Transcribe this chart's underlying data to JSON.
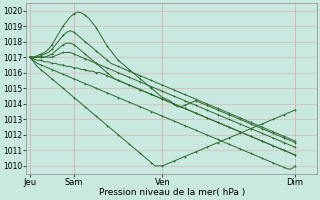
{
  "xlabel": "Pression niveau de la mer( hPa )",
  "bg_color": "#c8e8e0",
  "grid_color": "#d4b8b8",
  "line_color": "#2d6a2d",
  "ylim": [
    1009.5,
    1020.5
  ],
  "yticks": [
    1010,
    1011,
    1012,
    1013,
    1014,
    1015,
    1016,
    1017,
    1018,
    1019,
    1020
  ],
  "xtick_labels": [
    "Jeu",
    "Sam",
    "Ven",
    "Dim"
  ],
  "xtick_pos": [
    0,
    12,
    36,
    72
  ],
  "xlim": [
    -1,
    78
  ],
  "lines": [
    [
      1017.0,
      1017.0,
      1017.1,
      1017.2,
      1017.3,
      1017.5,
      1017.8,
      1018.2,
      1018.6,
      1019.0,
      1019.3,
      1019.6,
      1019.8,
      1019.9,
      1019.85,
      1019.7,
      1019.5,
      1019.2,
      1018.9,
      1018.5,
      1018.1,
      1017.7,
      1017.4,
      1017.1,
      1016.8,
      1016.6,
      1016.4,
      1016.2,
      1016.0,
      1015.8,
      1015.6,
      1015.4,
      1015.2,
      1015.0,
      1014.8,
      1014.6,
      1014.4,
      1014.3,
      1014.2,
      1014.0,
      1013.8,
      1013.8,
      1013.9,
      1014.0,
      1014.1,
      1014.2,
      1014.1,
      1014.0,
      1013.9,
      1013.8,
      1013.7,
      1013.6,
      1013.5,
      1013.4,
      1013.3,
      1013.2,
      1013.1,
      1013.0,
      1012.9,
      1012.8,
      1012.7,
      1012.6,
      1012.5,
      1012.4,
      1012.3,
      1012.2,
      1012.1,
      1012.0,
      1011.9,
      1011.8,
      1011.7,
      1011.6,
      1011.5
    ],
    [
      1017.0,
      1017.0,
      1017.0,
      1017.1,
      1017.2,
      1017.3,
      1017.5,
      1017.8,
      1018.1,
      1018.4,
      1018.6,
      1018.7,
      1018.6,
      1018.4,
      1018.2,
      1018.0,
      1017.8,
      1017.6,
      1017.4,
      1017.2,
      1017.0,
      1016.8,
      1016.6,
      1016.5,
      1016.4,
      1016.3,
      1016.2,
      1016.1,
      1016.0,
      1015.9,
      1015.8,
      1015.7,
      1015.6,
      1015.5,
      1015.4,
      1015.3,
      1015.2,
      1015.1,
      1015.0,
      1014.9,
      1014.8,
      1014.7,
      1014.6,
      1014.5,
      1014.4,
      1014.3,
      1014.2,
      1014.1,
      1014.0,
      1013.9,
      1013.8,
      1013.7,
      1013.6,
      1013.5,
      1013.4,
      1013.3,
      1013.2,
      1013.1,
      1013.0,
      1012.9,
      1012.8,
      1012.7,
      1012.6,
      1012.5,
      1012.4,
      1012.3,
      1012.2,
      1012.1,
      1012.0,
      1011.9,
      1011.8,
      1011.7,
      1011.6
    ],
    [
      1017.0,
      1017.0,
      1017.0,
      1017.0,
      1017.0,
      1017.1,
      1017.2,
      1017.4,
      1017.6,
      1017.8,
      1017.9,
      1017.9,
      1017.8,
      1017.6,
      1017.4,
      1017.2,
      1017.0,
      1016.8,
      1016.6,
      1016.4,
      1016.2,
      1016.0,
      1015.8,
      1015.6,
      1015.5,
      1015.4,
      1015.3,
      1015.2,
      1015.1,
      1015.0,
      1014.9,
      1014.8,
      1014.7,
      1014.6,
      1014.5,
      1014.4,
      1014.3,
      1014.2,
      1014.1,
      1014.0,
      1013.9,
      1013.8,
      1013.7,
      1013.6,
      1013.5,
      1013.4,
      1013.3,
      1013.2,
      1013.1,
      1013.0,
      1012.9,
      1012.8,
      1012.7,
      1012.6,
      1012.5,
      1012.4,
      1012.3,
      1012.2,
      1012.1,
      1012.0,
      1011.9,
      1011.8,
      1011.7,
      1011.6,
      1011.5,
      1011.4,
      1011.3,
      1011.2,
      1011.1,
      1011.0,
      1010.9,
      1010.8,
      1010.7
    ],
    [
      1017.0,
      1017.0,
      1017.0,
      1017.0,
      1017.0,
      1017.0,
      1017.0,
      1017.1,
      1017.2,
      1017.3,
      1017.3,
      1017.3,
      1017.2,
      1017.1,
      1017.0,
      1016.9,
      1016.8,
      1016.7,
      1016.6,
      1016.5,
      1016.4,
      1016.3,
      1016.2,
      1016.1,
      1016.0,
      1015.9,
      1015.8,
      1015.7,
      1015.6,
      1015.5,
      1015.4,
      1015.3,
      1015.2,
      1015.1,
      1015.0,
      1014.9,
      1014.8,
      1014.7,
      1014.6,
      1014.5,
      1014.4,
      1014.3,
      1014.2,
      1014.1,
      1014.0,
      1013.9,
      1013.8,
      1013.7,
      1013.6,
      1013.5,
      1013.4,
      1013.3,
      1013.2,
      1013.1,
      1013.0,
      1012.9,
      1012.8,
      1012.7,
      1012.6,
      1012.5,
      1012.4,
      1012.3,
      1012.2,
      1012.1,
      1012.0,
      1011.9,
      1011.8,
      1011.7,
      1011.6,
      1011.5,
      1011.4,
      1011.3,
      1011.2
    ],
    [
      1017.0,
      1016.9,
      1016.8,
      1016.8,
      1016.7,
      1016.7,
      1016.6,
      1016.6,
      1016.5,
      1016.5,
      1016.4,
      1016.4,
      1016.3,
      1016.3,
      1016.2,
      1016.2,
      1016.1,
      1016.1,
      1016.0,
      1016.0,
      1015.9,
      1015.8,
      1015.7,
      1015.6,
      1015.5,
      1015.4,
      1015.3,
      1015.2,
      1015.1,
      1015.0,
      1014.9,
      1014.8,
      1014.7,
      1014.6,
      1014.5,
      1014.4,
      1014.3,
      1014.2,
      1014.1,
      1014.0,
      1013.9,
      1013.8,
      1013.7,
      1013.6,
      1013.5,
      1013.4,
      1013.3,
      1013.2,
      1013.1,
      1013.0,
      1012.9,
      1012.8,
      1012.7,
      1012.6,
      1012.5,
      1012.4,
      1012.3,
      1012.2,
      1012.1,
      1012.0,
      1011.9,
      1011.8,
      1011.7,
      1011.6,
      1011.5,
      1011.4,
      1011.3,
      1011.2,
      1011.1,
      1011.0,
      1010.9,
      1010.8,
      1010.7
    ],
    [
      1017.0,
      1016.8,
      1016.6,
      1016.5,
      1016.4,
      1016.3,
      1016.2,
      1016.1,
      1016.0,
      1015.9,
      1015.8,
      1015.7,
      1015.6,
      1015.5,
      1015.4,
      1015.3,
      1015.2,
      1015.1,
      1015.0,
      1014.9,
      1014.8,
      1014.7,
      1014.6,
      1014.5,
      1014.4,
      1014.3,
      1014.2,
      1014.1,
      1014.0,
      1013.9,
      1013.8,
      1013.7,
      1013.6,
      1013.5,
      1013.4,
      1013.3,
      1013.2,
      1013.1,
      1013.0,
      1012.9,
      1012.8,
      1012.7,
      1012.6,
      1012.5,
      1012.4,
      1012.3,
      1012.2,
      1012.1,
      1012.0,
      1011.9,
      1011.8,
      1011.7,
      1011.6,
      1011.5,
      1011.4,
      1011.3,
      1011.2,
      1011.1,
      1011.0,
      1010.9,
      1010.8,
      1010.7,
      1010.6,
      1010.5,
      1010.4,
      1010.3,
      1010.2,
      1010.1,
      1010.0,
      1009.9,
      1009.8,
      1009.8,
      1010.0
    ],
    [
      1017.0,
      1016.7,
      1016.4,
      1016.2,
      1016.0,
      1015.8,
      1015.6,
      1015.4,
      1015.2,
      1015.0,
      1014.8,
      1014.6,
      1014.4,
      1014.2,
      1014.0,
      1013.8,
      1013.6,
      1013.4,
      1013.2,
      1013.0,
      1012.8,
      1012.6,
      1012.4,
      1012.2,
      1012.0,
      1011.8,
      1011.6,
      1011.4,
      1011.2,
      1011.0,
      1010.8,
      1010.6,
      1010.4,
      1010.2,
      1010.0,
      1010.0,
      1010.0,
      1010.1,
      1010.2,
      1010.3,
      1010.4,
      1010.5,
      1010.6,
      1010.7,
      1010.8,
      1010.9,
      1011.0,
      1011.1,
      1011.2,
      1011.3,
      1011.4,
      1011.5,
      1011.6,
      1011.7,
      1011.8,
      1011.9,
      1012.0,
      1012.1,
      1012.2,
      1012.3,
      1012.4,
      1012.5,
      1012.6,
      1012.7,
      1012.8,
      1012.9,
      1013.0,
      1013.1,
      1013.2,
      1013.3,
      1013.4,
      1013.5,
      1013.6
    ]
  ]
}
